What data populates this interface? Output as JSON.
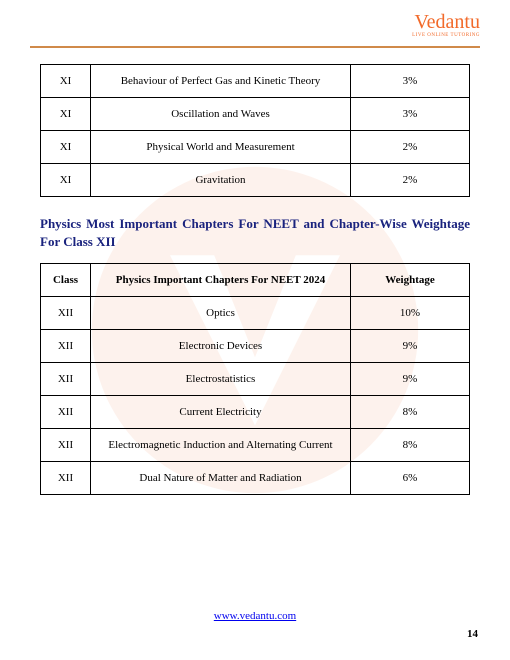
{
  "brand": {
    "name": "Vedantu",
    "tagline": "LIVE ONLINE TUTORING"
  },
  "table1": {
    "rows": [
      {
        "class": "XI",
        "topic": "Behaviour of Perfect Gas and Kinetic Theory",
        "weightage": "3%"
      },
      {
        "class": "XI",
        "topic": "Oscillation and Waves",
        "weightage": "3%"
      },
      {
        "class": "XI",
        "topic": "Physical World and Measurement",
        "weightage": "2%"
      },
      {
        "class": "XI",
        "topic": "Gravitation",
        "weightage": "2%"
      }
    ]
  },
  "section_title": "Physics Most Important Chapters For NEET and Chapter-Wise Weightage For Class XII",
  "table2": {
    "headers": {
      "class": "Class",
      "topic": "Physics Important Chapters For NEET 2024",
      "weightage": "Weightage"
    },
    "rows": [
      {
        "class": "XII",
        "topic": "Optics",
        "weightage": "10%"
      },
      {
        "class": "XII",
        "topic": "Electronic Devices",
        "weightage": "9%"
      },
      {
        "class": "XII",
        "topic": "Electrostatistics",
        "weightage": "9%"
      },
      {
        "class": "XII",
        "topic": "Current Electricity",
        "weightage": "8%"
      },
      {
        "class": "XII",
        "topic": "Electromagnetic Induction and Alternating Current",
        "weightage": "8%"
      },
      {
        "class": "XII",
        "topic": "Dual Nature of Matter and Radiation",
        "weightage": "6%"
      }
    ]
  },
  "footer": {
    "url_text": "www.vedantu.com",
    "url_href": "http://www.vedantu.com"
  },
  "page_number": "14",
  "colors": {
    "brand": "#f26a2a",
    "rule": "#d08a4a",
    "title": "#1a237e",
    "link": "#0000ee",
    "border": "#000000",
    "bg": "#ffffff"
  }
}
